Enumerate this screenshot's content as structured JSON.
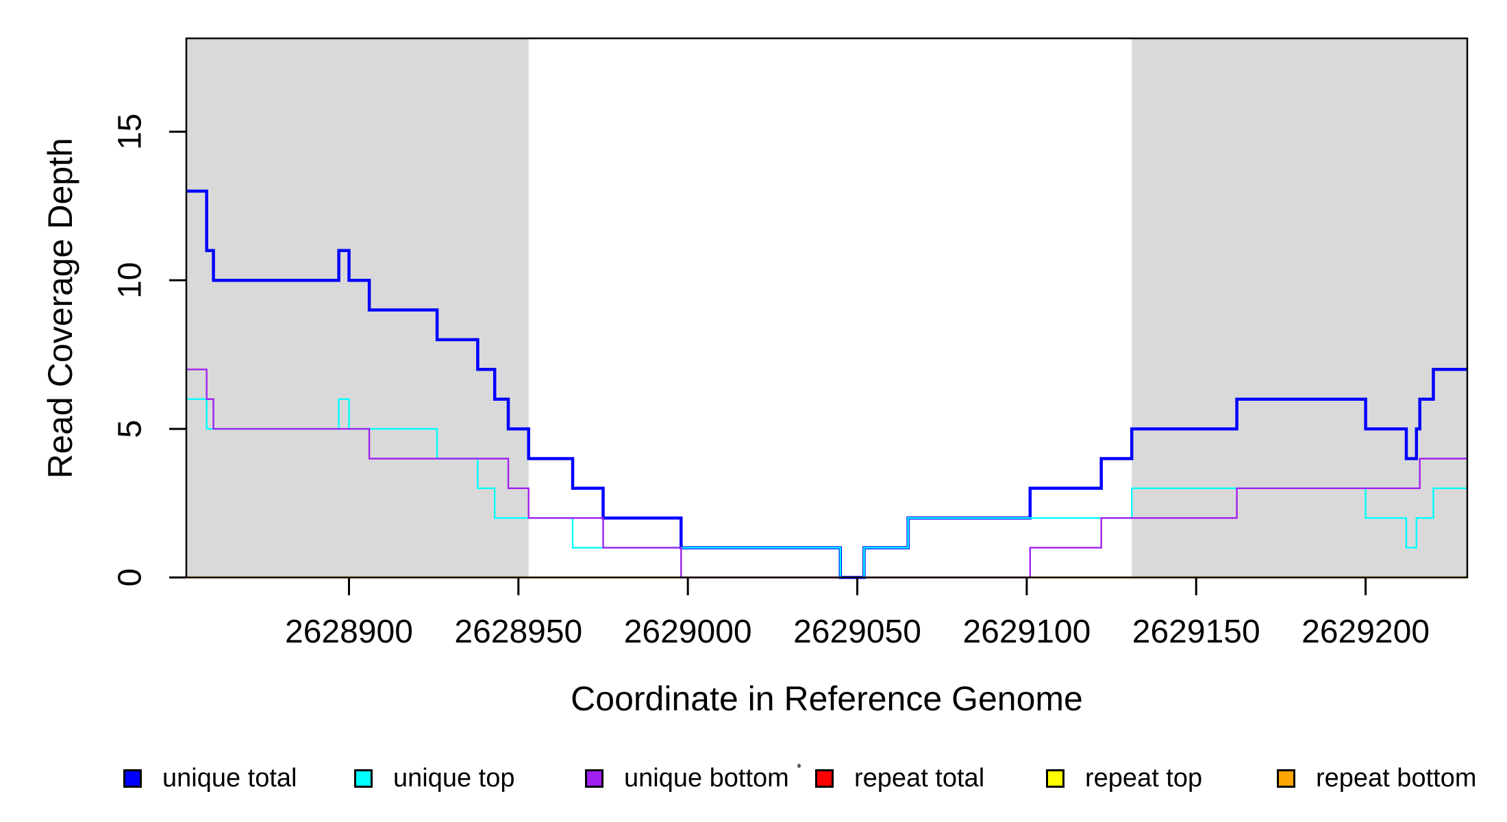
{
  "figure": {
    "background": "#ffffff",
    "x_axis_title": "Coordinate in Reference Genome",
    "y_axis_title": "Read Coverage Depth"
  },
  "chart_data": {
    "type": "line",
    "subtype": "step-after",
    "title": "",
    "xlabel": "Coordinate in Reference Genome",
    "ylabel": "Read Coverage Depth",
    "xlim": [
      2628852,
      2629230
    ],
    "ylim": [
      0,
      18.14
    ],
    "x_ticks": [
      2628900,
      2628950,
      2629000,
      2629050,
      2629100,
      2629150,
      2629200
    ],
    "y_ticks": [
      0,
      5,
      10,
      15
    ],
    "grid": false,
    "legend_position": "bottom",
    "axis_color": "#000000",
    "shaded_region_color": "#D9D9D9",
    "shaded_regions": [
      {
        "name": "left-gray-region",
        "from": 2628852,
        "to": 2628953
      },
      {
        "name": "right-gray-region",
        "from": 2629131,
        "to": 2629230
      }
    ],
    "series": [
      {
        "name": "repeat total",
        "color": "#FF0000",
        "line_width": 3,
        "points": [
          [
            2628852,
            0
          ],
          [
            2629230,
            0
          ]
        ]
      },
      {
        "name": "repeat top",
        "color": "#FFFF00",
        "line_width": 3,
        "points": [
          [
            2628852,
            0
          ],
          [
            2629230,
            0
          ]
        ]
      },
      {
        "name": "repeat bottom",
        "color": "#FFA500",
        "line_width": 3,
        "points": [
          [
            2628852,
            0
          ],
          [
            2629230,
            0
          ]
        ]
      },
      {
        "name": "unique total",
        "color": "#0000FF",
        "line_width": 4.5,
        "points": [
          [
            2628852,
            13
          ],
          [
            2628858,
            11
          ],
          [
            2628860,
            10
          ],
          [
            2628897,
            11
          ],
          [
            2628900,
            10
          ],
          [
            2628906,
            9
          ],
          [
            2628926,
            8
          ],
          [
            2628938,
            7
          ],
          [
            2628943,
            6
          ],
          [
            2628947,
            5
          ],
          [
            2628953,
            4
          ],
          [
            2628966,
            3
          ],
          [
            2628975,
            2
          ],
          [
            2628998,
            1
          ],
          [
            2629045,
            0
          ],
          [
            2629052,
            1
          ],
          [
            2629065,
            2
          ],
          [
            2629101,
            3
          ],
          [
            2629122,
            4
          ],
          [
            2629131,
            5
          ],
          [
            2629162,
            6
          ],
          [
            2629200,
            5
          ],
          [
            2629212,
            4
          ],
          [
            2629215,
            5
          ],
          [
            2629216,
            6
          ],
          [
            2629220,
            7
          ],
          [
            2629230,
            7
          ]
        ]
      },
      {
        "name": "unique top",
        "color": "#00FFFF",
        "line_width": 2.4,
        "points": [
          [
            2628852,
            6
          ],
          [
            2628858,
            5
          ],
          [
            2628897,
            6
          ],
          [
            2628900,
            5
          ],
          [
            2628926,
            4
          ],
          [
            2628938,
            3
          ],
          [
            2628943,
            2
          ],
          [
            2628966,
            1
          ],
          [
            2629045,
            0
          ],
          [
            2629052,
            1
          ],
          [
            2629065,
            2
          ],
          [
            2629131,
            3
          ],
          [
            2629200,
            2
          ],
          [
            2629212,
            1
          ],
          [
            2629215,
            2
          ],
          [
            2629220,
            3
          ],
          [
            2629230,
            3
          ]
        ]
      },
      {
        "name": "unique bottom",
        "color": "#A020F0",
        "line_width": 2.4,
        "points": [
          [
            2628852,
            7
          ],
          [
            2628858,
            6
          ],
          [
            2628860,
            5
          ],
          [
            2628906,
            4
          ],
          [
            2628947,
            3
          ],
          [
            2628953,
            2
          ],
          [
            2628975,
            1
          ],
          [
            2628998,
            0
          ],
          [
            2629101,
            1
          ],
          [
            2629122,
            2
          ],
          [
            2629162,
            3
          ],
          [
            2629216,
            4
          ],
          [
            2629230,
            4
          ]
        ]
      }
    ],
    "legend": [
      {
        "label": "unique total",
        "color": "#0000FF"
      },
      {
        "label": "unique top",
        "color": "#00FFFF"
      },
      {
        "label": "unique bottom",
        "color": "#A020F0"
      },
      {
        "label": "repeat total",
        "color": "#FF0000"
      },
      {
        "label": "repeat top",
        "color": "#FFFF00"
      },
      {
        "label": "repeat bottom",
        "color": "#FFA500"
      }
    ]
  }
}
